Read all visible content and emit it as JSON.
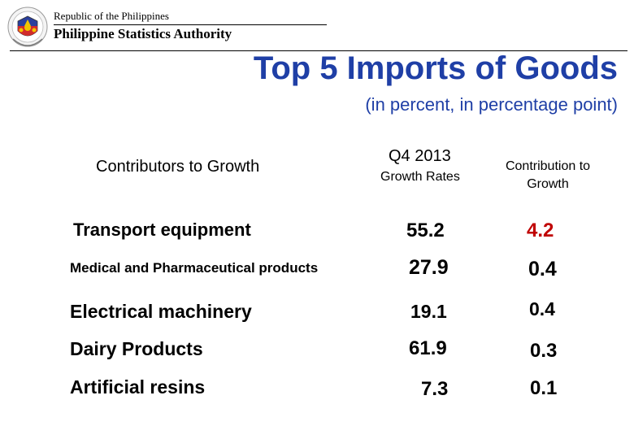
{
  "header": {
    "republic": "Republic of the Philippines",
    "agency": "Philippine Statistics Authority",
    "seal_icon": "psa-seal-icon"
  },
  "slide": {
    "title": "Top 5 Imports of Goods",
    "subtitle": "(in percent, in percentage point)"
  },
  "table": {
    "columns": {
      "label": "Contributors to Growth",
      "period": "Q4 2013",
      "growth": "Growth Rates",
      "contribution": "Contribution to Growth"
    },
    "rows": [
      {
        "label": "Transport equipment",
        "growth": "55.2",
        "contribution": "4.2"
      },
      {
        "label": "Medical and Pharmaceutical products",
        "growth": "27.9",
        "contribution": "0.4"
      },
      {
        "label": "Electrical machinery",
        "growth": "19.1",
        "contribution": "0.4"
      },
      {
        "label": "Dairy Products",
        "growth": "61.9",
        "contribution": "0.3"
      },
      {
        "label": "Artificial resins",
        "growth": "7.3",
        "contribution": "0.1"
      }
    ]
  },
  "colors": {
    "title_blue": "#1f3fa6",
    "contribution_red": "#c00000"
  }
}
